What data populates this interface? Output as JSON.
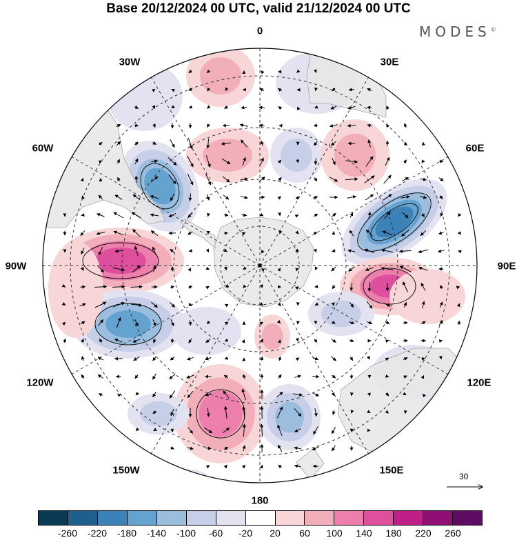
{
  "title": "Base 20/12/2024 00 UTC, valid 21/12/2024 00 UTC",
  "brand": "MODES",
  "brand_mark": "©",
  "longitude_labels": {
    "lon_0": "0",
    "lon_30e": "30E",
    "lon_60e": "60E",
    "lon_90e": "90E",
    "lon_120e": "120E",
    "lon_150e": "150E",
    "lon_180": "180",
    "lon_150w": "150W",
    "lon_120w": "120W",
    "lon_90w": "90W",
    "lon_60w": "60W",
    "lon_30w": "30W"
  },
  "vector_reference": {
    "value": "30",
    "icon": "arrow-right-icon"
  },
  "colorbar": {
    "colors": [
      "#0b3a55",
      "#1f5f8e",
      "#3a82b8",
      "#64a3cf",
      "#9bbede",
      "#c6cee8",
      "#e3e2f1",
      "#ffffff",
      "#f8d6d8",
      "#f2aeb9",
      "#ec7fac",
      "#de4f9d",
      "#c01f88",
      "#8f0f75",
      "#5e0b62"
    ],
    "ticks": [
      "-260",
      "-220",
      "-180",
      "-140",
      "-100",
      "-60",
      "-20",
      "20",
      "60",
      "100",
      "140",
      "180",
      "220",
      "260"
    ]
  },
  "map": {
    "projection": "south polar stereographic",
    "land_color": "#e8e8e8",
    "graticule_style": "dashed",
    "anomaly_centres": [
      {
        "sign": "negative",
        "value": -180,
        "region": "south of 30E-60E"
      },
      {
        "sign": "positive",
        "value": 180,
        "region": "90E-120E"
      },
      {
        "sign": "positive",
        "value": 180,
        "region": "90W"
      },
      {
        "sign": "negative",
        "value": -140,
        "region": "30W-60W"
      },
      {
        "sign": "negative",
        "value": -140,
        "region": "120W"
      },
      {
        "sign": "positive",
        "value": 140,
        "region": "150W-180"
      },
      {
        "sign": "negative",
        "value": -100,
        "region": "150E-180"
      },
      {
        "sign": "positive",
        "value": 100,
        "region": "near 180 inner"
      }
    ]
  }
}
